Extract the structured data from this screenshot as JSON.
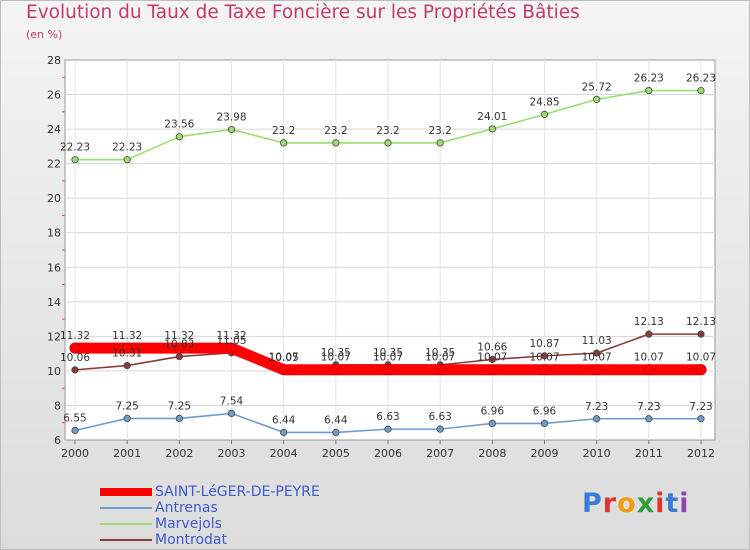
{
  "title": "Evolution du Taux de Taxe Foncière sur les Propriétés Bâties",
  "subtitle": "(en %)",
  "logo": {
    "letters": [
      "P",
      "r",
      "o",
      "x",
      "i",
      "t",
      "i"
    ],
    "colors": [
      "#3a7bd5",
      "#e0352b",
      "#f39c12",
      "#2e9e3f",
      "#e0352b",
      "#3a7bd5",
      "#8e44ad"
    ]
  },
  "chart_data": {
    "type": "line",
    "title": "Evolution du Taux de Taxe Foncière sur les Propriétés Bâties",
    "ylabel": "(en %)",
    "xlabel": "",
    "ylim": [
      6,
      28
    ],
    "yticks": [
      6,
      8,
      10,
      12,
      14,
      16,
      18,
      20,
      22,
      24,
      26,
      28
    ],
    "x": [
      "2000",
      "2001",
      "2002",
      "2003",
      "2004",
      "2005",
      "2006",
      "2007",
      "2008",
      "2009",
      "2010",
      "2011",
      "2012"
    ],
    "legend_position": "bottom-left",
    "series": [
      {
        "name": "SAINT-LéGER-DE-PEYRE",
        "color": "#ff0000",
        "values": [
          11.32,
          11.32,
          11.32,
          11.32,
          10.07,
          10.07,
          10.07,
          10.07,
          10.07,
          10.07,
          10.07,
          10.07,
          10.07
        ],
        "labels": [
          "11.32",
          "11.32",
          "11.32",
          "11.32",
          "10.07",
          "10.07",
          "10.07",
          "10.07",
          "10.07",
          "10.07",
          "10.07",
          "10.07",
          "10.07"
        ],
        "bold": true
      },
      {
        "name": "Antrenas",
        "color": "#6f9ccf",
        "values": [
          6.55,
          7.25,
          7.25,
          7.54,
          6.44,
          6.44,
          6.63,
          6.63,
          6.96,
          6.96,
          7.23,
          7.23,
          7.23
        ],
        "labels": [
          "6.55",
          "7.25",
          "7.25",
          "7.54",
          "6.44",
          "6.44",
          "6.63",
          "6.63",
          "6.96",
          "6.96",
          "7.23",
          "7.23",
          "7.23"
        ]
      },
      {
        "name": "Marvejols",
        "color": "#9bdd6f",
        "values": [
          22.23,
          22.23,
          23.56,
          23.98,
          23.2,
          23.2,
          23.2,
          23.2,
          24.01,
          24.85,
          25.72,
          26.23,
          26.23
        ],
        "labels": [
          "22.23",
          "22.23",
          "23.56",
          "23.98",
          "23.2",
          "23.2",
          "23.2",
          "23.2",
          "24.01",
          "24.85",
          "25.72",
          "26.23",
          "26.23"
        ]
      },
      {
        "name": "Montrodat",
        "color": "#8a3b3b",
        "values": [
          10.06,
          10.31,
          10.83,
          11.05,
          10.05,
          10.35,
          10.35,
          10.35,
          10.66,
          10.87,
          11.03,
          12.13,
          12.13
        ],
        "labels": [
          "10.06",
          "10.31",
          "10.83",
          "11.05",
          "10.05",
          "10.35",
          "10.35",
          "10.35",
          "10.66",
          "10.87",
          "11.03",
          "12.13",
          "12.13"
        ]
      }
    ]
  }
}
